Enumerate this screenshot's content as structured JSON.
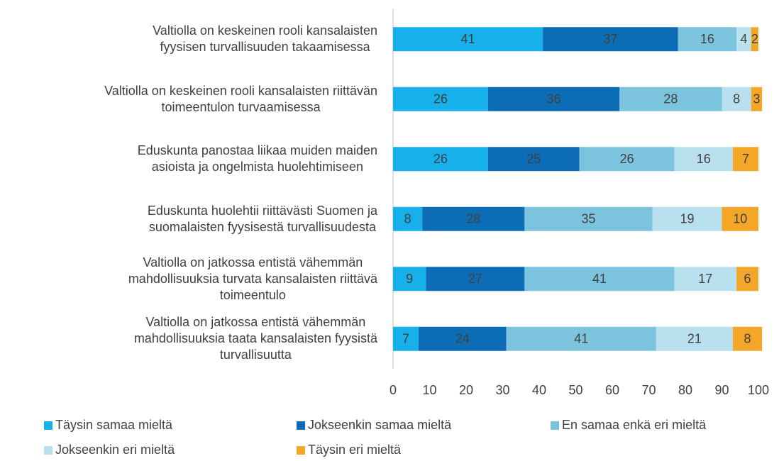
{
  "chart_data": {
    "type": "stacked-barh",
    "categories": [
      "Valtiolla on keskeinen rooli kansalaisten\nfyysisen turvallisuuden takaamisessa",
      "Valtiolla on keskeinen rooli kansalaisten riittävän\ntoimeentulon turvaamisessa",
      "Eduskunta panostaa liikaa muiden maiden\nasioista ja ongelmista huolehtimiseen",
      "Eduskunta huolehtii riittävästi Suomen ja\nsuomalaisten fyysisestä turvallisuudesta",
      "Valtiolla on jatkossa entistä vähemmän\nmahdollisuuksia turvata kansalaisten riittävä\ntoimeentulo",
      "Valtiolla on jatkossa entistä vähemmän\nmahdollisuuksia taata kansalaisten fyysistä\nturvallisuutta"
    ],
    "series": [
      {
        "name": "Täysin samaa mieltä",
        "color": "#16b0ea",
        "values": [
          41,
          26,
          26,
          8,
          9,
          7
        ]
      },
      {
        "name": "Jokseenkin samaa mieltä",
        "color": "#0c6db6",
        "values": [
          37,
          36,
          25,
          28,
          27,
          24
        ]
      },
      {
        "name": "En samaa enkä eri mieltä",
        "color": "#7cc4dd",
        "values": [
          16,
          28,
          26,
          35,
          41,
          41
        ]
      },
      {
        "name": "Jokseenkin eri mieltä",
        "color": "#b8e0ee",
        "values": [
          4,
          8,
          16,
          19,
          17,
          21
        ]
      },
      {
        "name": "Täysin eri mieltä",
        "color": "#f4a628",
        "values": [
          2,
          3,
          7,
          10,
          6,
          8
        ]
      }
    ],
    "xlim": [
      0,
      100
    ],
    "xticks": [
      0,
      10,
      20,
      30,
      40,
      50,
      60,
      70,
      80,
      90,
      100
    ],
    "legend": "bottom"
  }
}
